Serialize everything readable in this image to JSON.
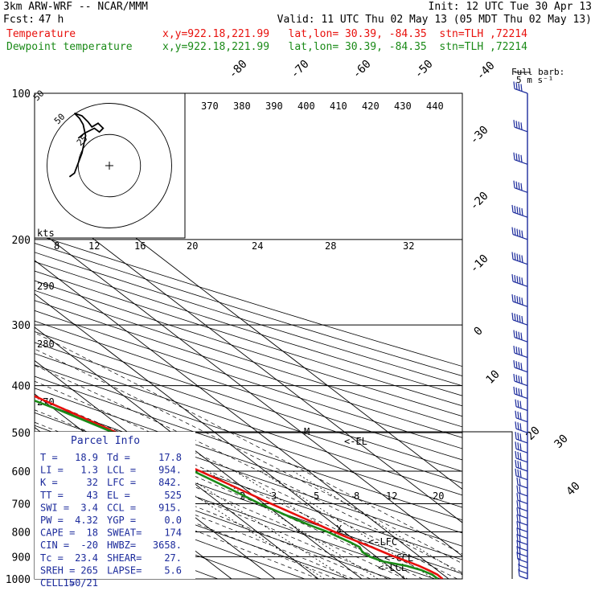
{
  "header": {
    "model": "3km ARW-WRF -- NCAR/MMM",
    "init": "Init: 12 UTC Tue 30 Apr 13",
    "fcst_label": "Fcst:",
    "fcst_value": "47 h",
    "valid": "Valid: 11 UTC Thu 02 May 13 (05 MDT Thu 02 May 13)"
  },
  "legend": [
    {
      "name": "Temperature",
      "color": "#e8100c",
      "location": "x,y=922.18,221.99   lat,lon= 30.39, -84.35  stn=TLH ,72214"
    },
    {
      "name": "Dewpoint temperature",
      "color": "#1a8a17",
      "location": "x,y=922.18,221.99   lat,lon= 30.39, -84.35  stn=TLH ,72214"
    }
  ],
  "parcel": {
    "title": "Parcel Info",
    "rows": [
      [
        "T  =",
        "18.9",
        "Td =",
        "17.8"
      ],
      [
        "LI =",
        "1.3",
        "LCL =",
        "954."
      ],
      [
        "K  =",
        "32",
        "LFC =",
        "842."
      ],
      [
        "TT =",
        "43",
        "EL  =",
        "525"
      ],
      [
        "SWI =",
        "3.4",
        "CCL =",
        "915."
      ],
      [
        "PW =",
        "4.32",
        "YGP =",
        "0.0"
      ],
      [
        "CAPE =",
        "18",
        "SWEAT=",
        "174"
      ],
      [
        "CIN  =",
        "-20",
        "HWBZ=",
        "3658."
      ],
      [
        "Tc =",
        "23.4",
        "SHEAR=",
        "27."
      ],
      [
        "SREH =",
        "265",
        "LAPSE=",
        "5.6"
      ],
      [
        "CELL =",
        "150/21",
        "",
        ""
      ]
    ]
  },
  "barb_legend": {
    "line1": "Full barb:",
    "line2": "5 m s⁻¹"
  },
  "hodograph": {
    "rings": [
      "50",
      "25"
    ],
    "axis_label": "kts",
    "points": [
      [
        -25,
        22
      ],
      [
        -20,
        26
      ],
      [
        -12,
        30
      ],
      [
        -8,
        27
      ],
      [
        -5,
        30
      ],
      [
        -9,
        34
      ],
      [
        -14,
        31
      ],
      [
        -17,
        35
      ],
      [
        -22,
        40
      ],
      [
        -28,
        42
      ],
      [
        -24,
        38
      ],
      [
        -21,
        33
      ],
      [
        -19,
        24
      ],
      [
        -22,
        10
      ],
      [
        -28,
        -6
      ],
      [
        -32,
        -9
      ]
    ]
  },
  "annotations": {
    "el": "<-EL",
    "lfc": "<-LFC",
    "ccl": "<-CCL",
    "lcl": "<-LCL",
    "m": "M",
    "x": "X"
  },
  "chart_data": {
    "type": "line",
    "skewt_logp": true,
    "ylim": [
      1000,
      100
    ],
    "pressure_ticks": [
      100,
      200,
      300,
      400,
      500,
      600,
      700,
      800,
      900,
      1000
    ],
    "isotherm_labels_top": [
      "-80",
      "-70",
      "-60",
      "-50",
      "-40"
    ],
    "isotherm_labels_right": [
      "-30",
      "-20",
      "-10",
      "0",
      "10",
      "20",
      "30",
      "40"
    ],
    "theta_labels": [
      "370",
      "380",
      "390",
      "400",
      "410",
      "420",
      "430",
      "440"
    ],
    "theta_labels_left": [
      "290",
      "280",
      "270"
    ],
    "mixing_ratio_labels": [
      "2",
      "3",
      "5",
      "8",
      "12",
      "20"
    ],
    "hodo_ticks": [
      "8",
      "12",
      "16",
      "20",
      "24",
      "28",
      "32"
    ],
    "series": [
      {
        "name": "Temperature",
        "color": "#e8100c",
        "p": [
          1000,
          980,
          960,
          940,
          920,
          900,
          880,
          860,
          840,
          820,
          800,
          780,
          750,
          700,
          650,
          600,
          550,
          500,
          450,
          400,
          350,
          300,
          250,
          220,
          200,
          180,
          160,
          140,
          120,
          100
        ],
        "T": [
          18.6,
          18.7,
          18.0,
          17.1,
          15.7,
          14.2,
          13.0,
          11.8,
          10.4,
          9.0,
          7.8,
          6.6,
          4.8,
          1.6,
          -1.5,
          -5.0,
          -8.9,
          -12.6,
          -17.5,
          -23.0,
          -30.1,
          -38.5,
          -49.0,
          -56.0,
          -60.0,
          -62.0,
          -62.5,
          -63.0,
          -64.5,
          -67.0
        ]
      },
      {
        "name": "Dewpoint temperature",
        "color": "#1a8a17",
        "p": [
          1000,
          980,
          960,
          940,
          920,
          900,
          880,
          860,
          840,
          820,
          800,
          780,
          750,
          700,
          650,
          600,
          550,
          500,
          450,
          400,
          350,
          300,
          250,
          220,
          200,
          180,
          160,
          140,
          120,
          100
        ],
        "T": [
          17.5,
          17.5,
          16.4,
          14.2,
          10.0,
          8.5,
          8.2,
          9.0,
          8.3,
          7.2,
          6.2,
          4.5,
          2.3,
          -1.0,
          -3.5,
          -6.5,
          -9.5,
          -13.3,
          -19.0,
          -26.5,
          -35.5,
          -45.0,
          -55.5,
          -62.0,
          -66.5,
          -72.0,
          -73.5,
          -69.0,
          -67.0,
          -66.0
        ]
      }
    ],
    "wind_pressures": [
      1000,
      975,
      950,
      925,
      900,
      875,
      850,
      825,
      800,
      775,
      750,
      725,
      700,
      675,
      650,
      625,
      600,
      575,
      550,
      525,
      500,
      475,
      450,
      425,
      400,
      375,
      350,
      325,
      300,
      275,
      250,
      225,
      200,
      180,
      160,
      140,
      120,
      100
    ],
    "wind_speed_ms": [
      3,
      5,
      7,
      8,
      9,
      9,
      10,
      10,
      10,
      11,
      11,
      11,
      12,
      12,
      12,
      13,
      13,
      13,
      14,
      15,
      16,
      17,
      17,
      18,
      19,
      20,
      21,
      22,
      23,
      24,
      25,
      26,
      24,
      23,
      22,
      21,
      20,
      19
    ],
    "wind_dir_deg": [
      200,
      210,
      220,
      225,
      230,
      235,
      240,
      240,
      245,
      245,
      250,
      250,
      255,
      255,
      255,
      255,
      255,
      260,
      260,
      260,
      260,
      260,
      265,
      265,
      265,
      265,
      265,
      265,
      270,
      270,
      270,
      270,
      270,
      270,
      270,
      270,
      270,
      270
    ]
  }
}
